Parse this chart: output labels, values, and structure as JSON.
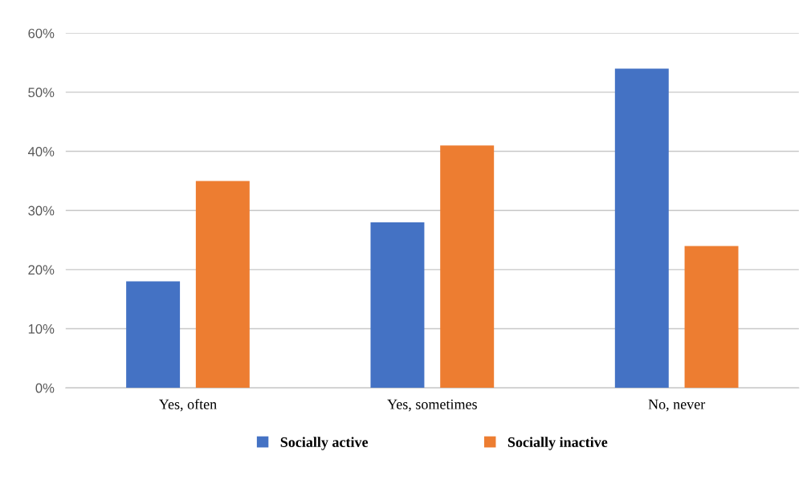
{
  "chart_data": {
    "type": "bar",
    "categories": [
      "Yes, often",
      "Yes, sometimes",
      "No, never"
    ],
    "series": [
      {
        "name": "Socially active",
        "color": "#4472c4",
        "values": [
          18,
          28,
          54
        ]
      },
      {
        "name": "Socially inactive",
        "color": "#ed7d31",
        "values": [
          35,
          41,
          24
        ]
      }
    ],
    "ylim": [
      0,
      60
    ],
    "yticks": [
      {
        "value": 0,
        "label": "0%"
      },
      {
        "value": 10,
        "label": "10%"
      },
      {
        "value": 20,
        "label": "20%"
      },
      {
        "value": 30,
        "label": "30%"
      },
      {
        "value": 40,
        "label": "40%"
      },
      {
        "value": 50,
        "label": "50%"
      },
      {
        "value": 60,
        "label": "60%"
      }
    ],
    "grid": "y",
    "legend": "bottom"
  }
}
